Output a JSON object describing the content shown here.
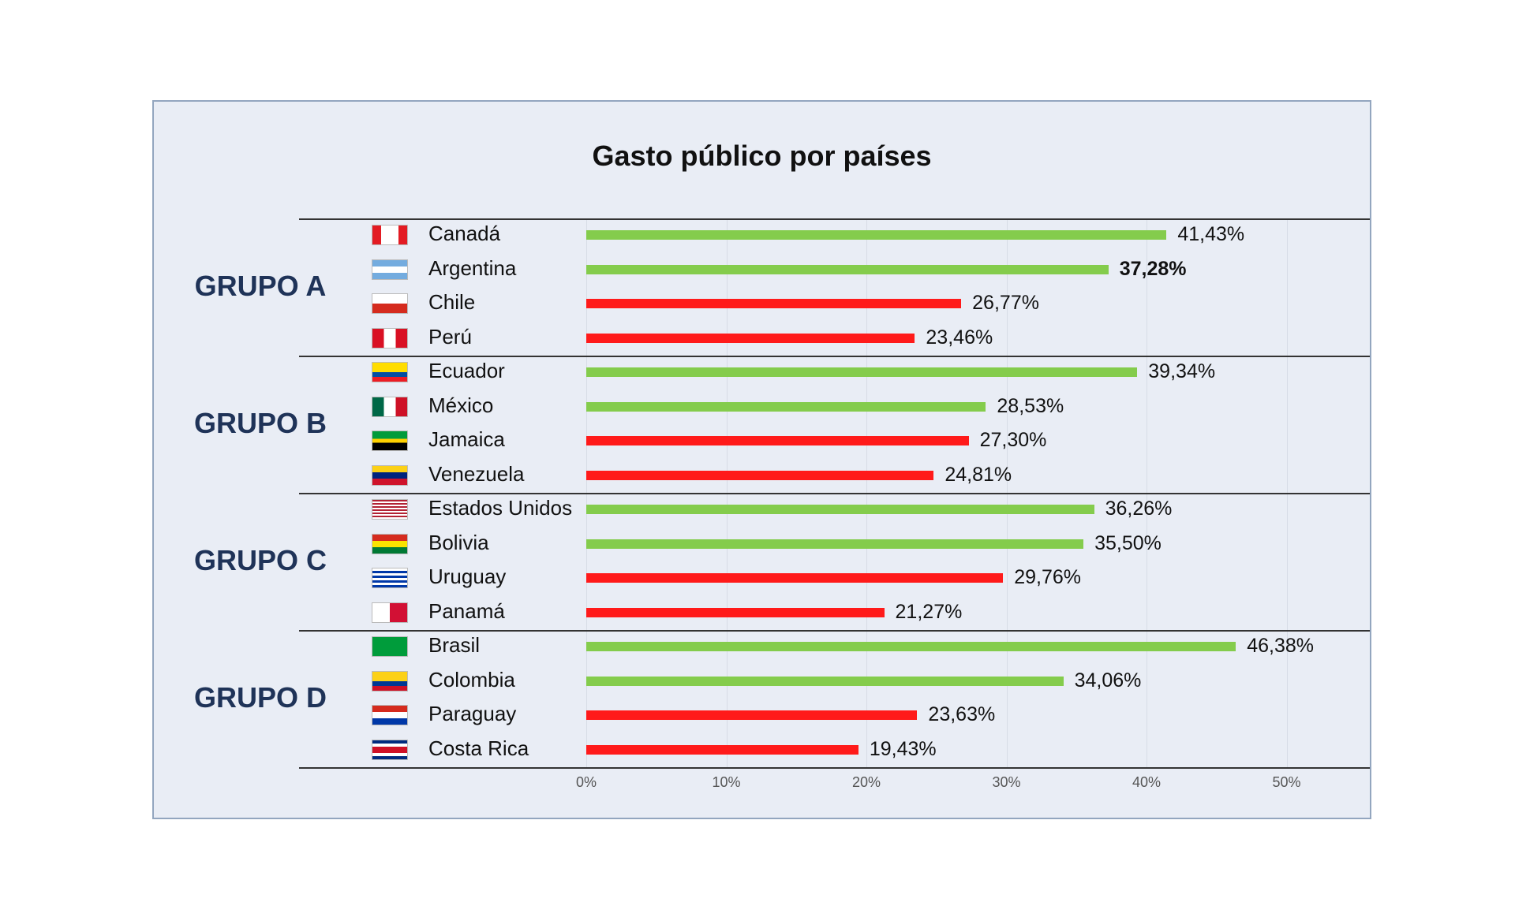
{
  "chart_data": {
    "type": "bar",
    "orientation": "horizontal",
    "title": "Gasto público por países",
    "xlim": [
      0,
      50
    ],
    "x_ticks": [
      "0%",
      "10%",
      "20%",
      "30%",
      "40%",
      "50%"
    ],
    "groups": [
      {
        "label": "GRUPO A",
        "rows": [
          {
            "country": "Canadá",
            "value": 41.43,
            "label": "41,43%",
            "color": "green"
          },
          {
            "country": "Argentina",
            "value": 37.28,
            "label": "37,28%",
            "color": "green",
            "bold": true
          },
          {
            "country": "Chile",
            "value": 26.77,
            "label": "26,77%",
            "color": "red"
          },
          {
            "country": "Perú",
            "value": 23.46,
            "label": "23,46%",
            "color": "red"
          }
        ]
      },
      {
        "label": "GRUPO B",
        "rows": [
          {
            "country": "Ecuador",
            "value": 39.34,
            "label": "39,34%",
            "color": "green"
          },
          {
            "country": "México",
            "value": 28.53,
            "label": "28,53%",
            "color": "green"
          },
          {
            "country": "Jamaica",
            "value": 27.3,
            "label": "27,30%",
            "color": "red"
          },
          {
            "country": "Venezuela",
            "value": 24.81,
            "label": "24,81%",
            "color": "red"
          }
        ]
      },
      {
        "label": "GRUPO C",
        "rows": [
          {
            "country": "Estados Unidos",
            "value": 36.26,
            "label": "36,26%",
            "color": "green"
          },
          {
            "country": "Bolivia",
            "value": 35.5,
            "label": "35,50%",
            "color": "green"
          },
          {
            "country": "Uruguay",
            "value": 29.76,
            "label": "29,76%",
            "color": "red"
          },
          {
            "country": "Panamá",
            "value": 21.27,
            "label": "21,27%",
            "color": "red"
          }
        ]
      },
      {
        "label": "GRUPO D",
        "rows": [
          {
            "country": "Brasil",
            "value": 46.38,
            "label": "46,38%",
            "color": "green"
          },
          {
            "country": "Colombia",
            "value": 34.06,
            "label": "34,06%",
            "color": "green"
          },
          {
            "country": "Paraguay",
            "value": 23.63,
            "label": "23,63%",
            "color": "red"
          },
          {
            "country": "Costa Rica",
            "value": 19.43,
            "label": "19,43%",
            "color": "red"
          }
        ]
      }
    ],
    "colors": {
      "green": "#84cc4c",
      "red": "#ff1a1a",
      "group_label": "#1f3358"
    }
  },
  "flags": {
    "Canadá": "flag-canada-icon",
    "Argentina": "flag-argentina-icon",
    "Chile": "flag-chile-icon",
    "Perú": "flag-peru-icon",
    "Ecuador": "flag-ecuador-icon",
    "México": "flag-mexico-icon",
    "Jamaica": "flag-jamaica-icon",
    "Venezuela": "flag-venezuela-icon",
    "Estados Unidos": "flag-usa-icon",
    "Bolivia": "flag-bolivia-icon",
    "Uruguay": "flag-uruguay-icon",
    "Panamá": "flag-panama-icon",
    "Brasil": "flag-brazil-icon",
    "Colombia": "flag-colombia-icon",
    "Paraguay": "flag-paraguay-icon",
    "Costa Rica": "flag-costa-rica-icon"
  }
}
